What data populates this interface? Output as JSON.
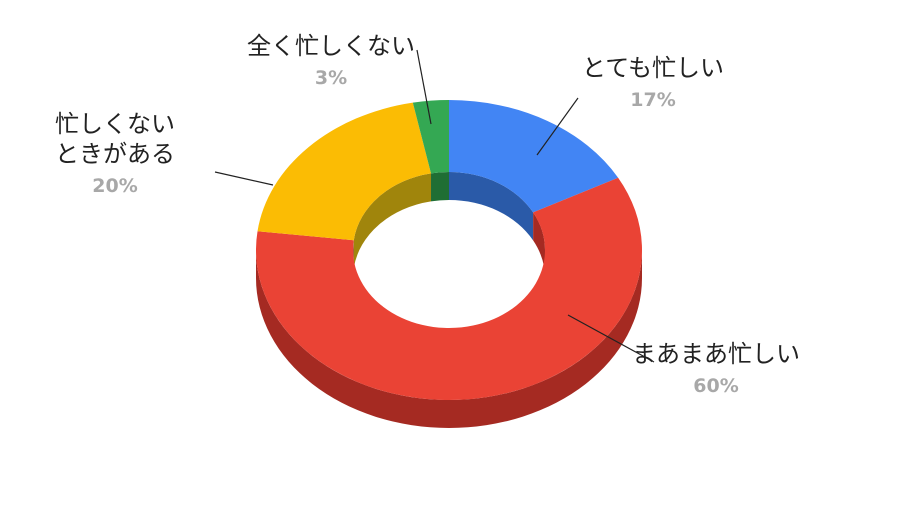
{
  "chart_data": {
    "type": "pie",
    "variant": "3d-donut",
    "title": "",
    "start_angle_deg": 0,
    "direction": "clockwise",
    "slices": [
      {
        "label": "とても忙しい",
        "value": 17,
        "display": "17%",
        "color": "#4285F4",
        "side_color": "#2A5AA8"
      },
      {
        "label": "まあまあ忙しい",
        "value": 60,
        "display": "60%",
        "color": "#EA4335",
        "side_color": "#A52A22"
      },
      {
        "label": "忙しくない\nときがある",
        "value": 20,
        "display": "20%",
        "color": "#FBBC04",
        "side_color": "#A0850C"
      },
      {
        "label": "全く忙しくない",
        "value": 3,
        "display": "3%",
        "color": "#34A853",
        "side_color": "#1F6E34"
      }
    ],
    "legend": "none",
    "labels": "outside-with-leader-lines"
  }
}
